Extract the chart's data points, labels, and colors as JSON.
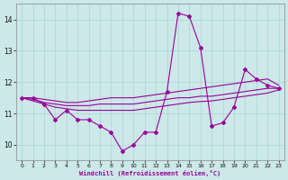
{
  "x": [
    0,
    1,
    2,
    3,
    4,
    5,
    6,
    7,
    8,
    9,
    10,
    11,
    12,
    13,
    14,
    15,
    16,
    17,
    18,
    19,
    20,
    21,
    22,
    23
  ],
  "line_jagged": [
    11.5,
    11.5,
    11.3,
    10.8,
    11.1,
    10.8,
    10.8,
    10.6,
    10.4,
    9.8,
    10.0,
    10.4,
    10.4,
    11.7,
    14.2,
    14.1,
    13.1,
    10.6,
    10.7,
    11.2,
    12.4,
    12.1,
    11.9,
    11.8
  ],
  "line_trend_high": [
    11.5,
    11.5,
    11.45,
    11.4,
    11.35,
    11.35,
    11.4,
    11.45,
    11.5,
    11.5,
    11.5,
    11.55,
    11.6,
    11.65,
    11.7,
    11.75,
    11.8,
    11.85,
    11.9,
    11.95,
    12.0,
    12.05,
    12.1,
    11.9
  ],
  "line_trend_mid": [
    11.5,
    11.45,
    11.35,
    11.3,
    11.25,
    11.25,
    11.25,
    11.3,
    11.3,
    11.3,
    11.3,
    11.35,
    11.4,
    11.45,
    11.5,
    11.5,
    11.55,
    11.55,
    11.6,
    11.65,
    11.7,
    11.75,
    11.8,
    11.8
  ],
  "line_trend_low": [
    11.5,
    11.4,
    11.3,
    11.2,
    11.15,
    11.1,
    11.1,
    11.1,
    11.1,
    11.1,
    11.1,
    11.15,
    11.2,
    11.25,
    11.3,
    11.35,
    11.38,
    11.4,
    11.45,
    11.5,
    11.55,
    11.6,
    11.65,
    11.75
  ],
  "line_color": "#990099",
  "bg_color": "#cce8e8",
  "grid_color": "#aad4d4",
  "xlabel": "Windchill (Refroidissement éolien,°C)",
  "ylim": [
    9.5,
    14.5
  ],
  "xlim": [
    -0.5,
    23.5
  ],
  "yticks": [
    10,
    11,
    12,
    13,
    14
  ],
  "xticks": [
    0,
    1,
    2,
    3,
    4,
    5,
    6,
    7,
    8,
    9,
    10,
    11,
    12,
    13,
    14,
    15,
    16,
    17,
    18,
    19,
    20,
    21,
    22,
    23
  ]
}
